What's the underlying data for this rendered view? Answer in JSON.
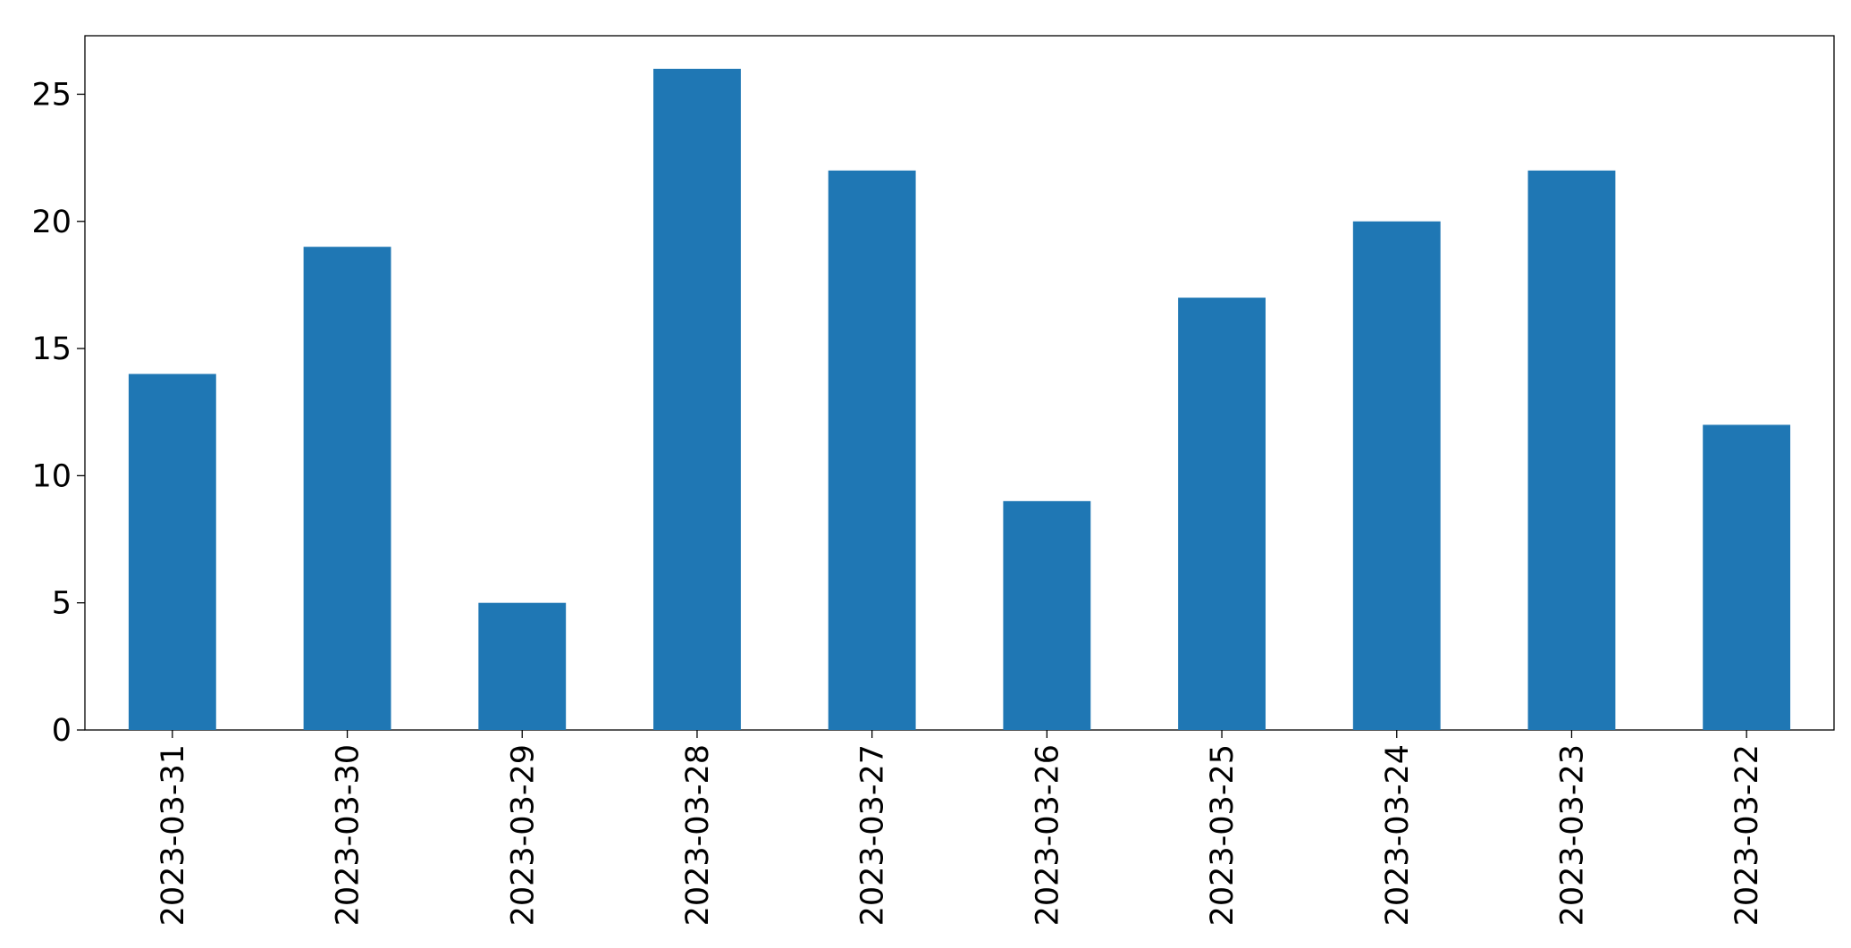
{
  "chart_data": {
    "type": "bar",
    "categories": [
      "2023-03-31",
      "2023-03-30",
      "2023-03-29",
      "2023-03-28",
      "2023-03-27",
      "2023-03-26",
      "2023-03-25",
      "2023-03-24",
      "2023-03-23",
      "2023-03-22"
    ],
    "values": [
      14,
      19,
      5,
      26,
      22,
      9,
      17,
      20,
      22,
      12
    ],
    "color": "#1f77b4",
    "ylim": [
      0,
      27.3
    ],
    "yticks": [
      0,
      5,
      10,
      15,
      20,
      25
    ],
    "grid": false
  }
}
